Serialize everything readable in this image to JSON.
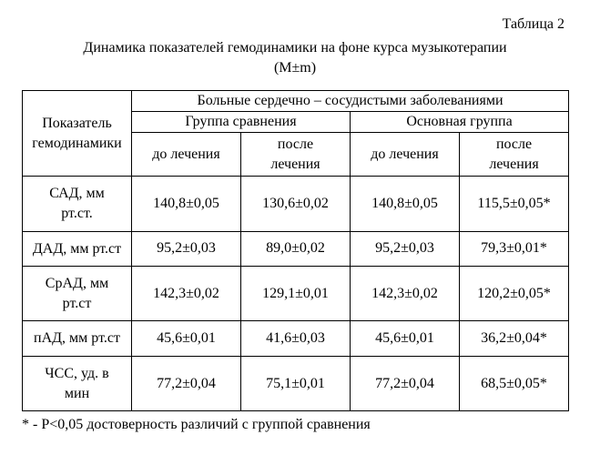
{
  "caption_number": "Таблица 2",
  "caption_title_line1": "Динамика показателей гемодинамики на фоне курса музыкотерапии",
  "caption_title_line2": "(M±m)",
  "header": {
    "col0_line1": "Показатель",
    "col0_line2": "гемодинамики",
    "span_all": "Больные сердечно – сосудистыми заболеваниями",
    "group1": "Группа сравнения",
    "group2": "Основная группа",
    "sub_before": "до лечения",
    "sub_after_line1": "после",
    "sub_after_line2": "лечения"
  },
  "rows": [
    {
      "label_l1": "САД, мм",
      "label_l2": "рт.ст.",
      "g1_before": "140,8±0,05",
      "g1_after": "130,6±0,02",
      "g2_before": "140,8±0,05",
      "g2_after": "115,5±0,05*"
    },
    {
      "label_l1": "ДАД, мм рт.ст",
      "label_l2": "",
      "g1_before": "95,2±0,03",
      "g1_after": "89,0±0,02",
      "g2_before": "95,2±0,03",
      "g2_after": "79,3±0,01*"
    },
    {
      "label_l1": "СрАД, мм",
      "label_l2": "рт.ст",
      "g1_before": "142,3±0,02",
      "g1_after": "129,1±0,01",
      "g2_before": "142,3±0,02",
      "g2_after": "120,2±0,05*"
    },
    {
      "label_l1": "пАД, мм рт.ст",
      "label_l2": "",
      "g1_before": "45,6±0,01",
      "g1_after": "41,6±0,03",
      "g2_before": "45,6±0,01",
      "g2_after": "36,2±0,04*"
    },
    {
      "label_l1": "ЧСС, уд. в",
      "label_l2": "мин",
      "g1_before": "77,2±0,04",
      "g1_after": "75,1±0,01",
      "g2_before": "77,2±0,04",
      "g2_after": "68,5±0,05*"
    }
  ],
  "footnote": "* - Р<0,05 достоверность различий с группой сравнения",
  "style": {
    "background_color": "#ffffff",
    "text_color": "#000000",
    "border_color": "#000000",
    "font_family": "Times New Roman",
    "font_size_pt": 12
  }
}
